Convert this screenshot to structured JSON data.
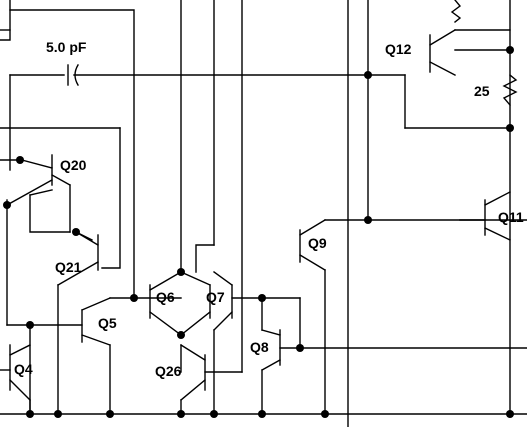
{
  "labels": {
    "cap": "5.0 pF",
    "q12": "Q12",
    "r25": "25",
    "q20": "Q20",
    "q11": "Q11",
    "q9": "Q9",
    "q21": "Q21",
    "q6": "Q6",
    "q7": "Q7",
    "q5": "Q5",
    "q8": "Q8",
    "q4": "Q4",
    "q26": "Q26"
  }
}
